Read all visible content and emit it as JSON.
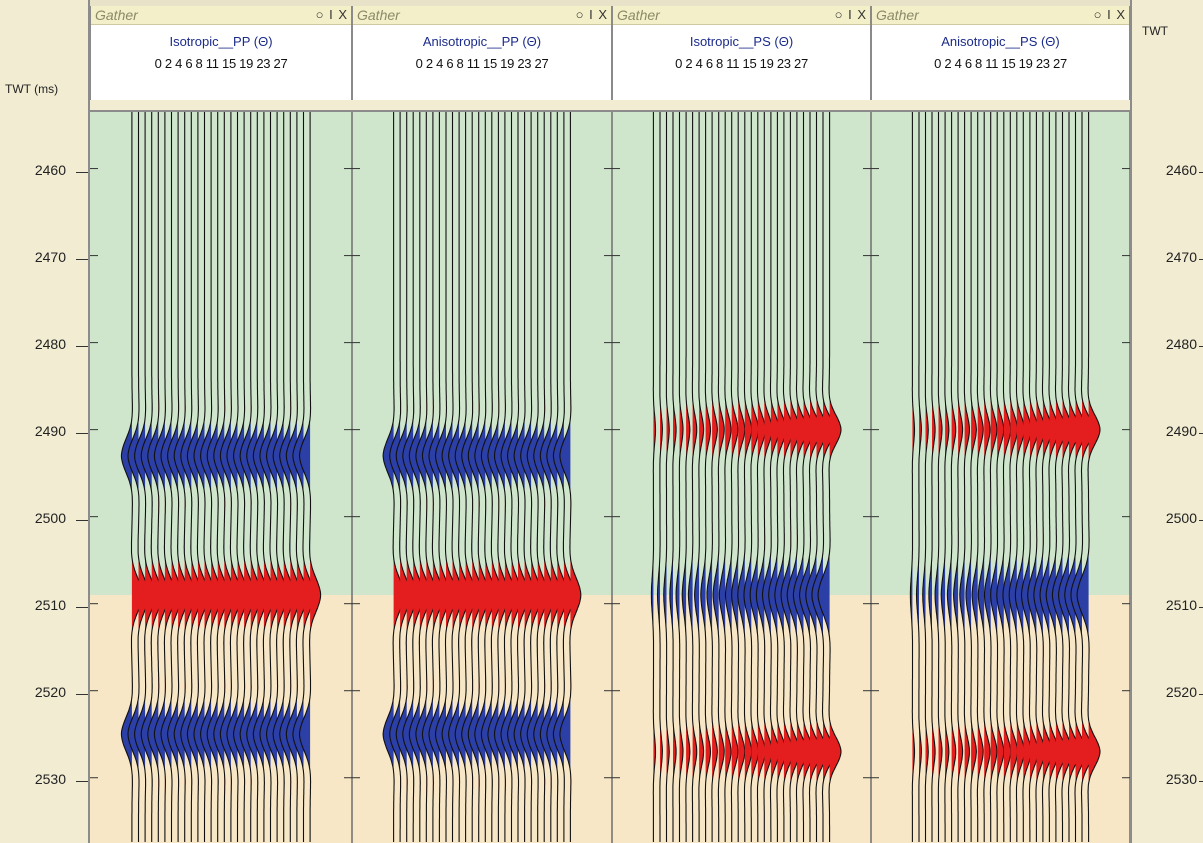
{
  "axis_left": {
    "title": "TWT (ms)",
    "ticks": [
      "2460",
      "2470",
      "2480",
      "2490",
      "2500",
      "2510",
      "2520",
      "2530"
    ]
  },
  "axis_right": {
    "title": "TWT",
    "ticks": [
      "2460",
      "2470",
      "2480",
      "2490",
      "2500",
      "2510",
      "2520",
      "2530"
    ]
  },
  "panels": [
    {
      "title": "Gather",
      "name": "Isotropic__PP (Θ)",
      "angles": "0 2 4 6 8 11 15 19 23 27",
      "buttons": "○ I X"
    },
    {
      "title": "Gather",
      "name": "Anisotropic__PP (Θ)",
      "angles": "0 2 4 6 8 11 15 19 23 27",
      "buttons": "○ I X"
    },
    {
      "title": "Gather",
      "name": "Isotropic__PS (Θ)",
      "angles": "0 2 4 6 8 11 15 19 23 27",
      "buttons": "○ I X"
    },
    {
      "title": "Gather",
      "name": "Anisotropic__PS (Θ)",
      "angles": "0 2 4 6 8 11 15 19 23 27",
      "buttons": "○ I X"
    }
  ],
  "colors": {
    "zone_upper": "#cfe6cd",
    "zone_lower": "#f7e7c6",
    "positive_fill": "#e41e1e",
    "negative_fill": "#2b3fa6",
    "wiggle": "#111111"
  },
  "gathers": {
    "twt_range_ms": [
      2453.5,
      2537.5
    ],
    "zone_boundary_ms": 2509,
    "trace_count": 28,
    "panels": [
      {
        "type": "PP",
        "events": [
          {
            "t": 2493,
            "sign": -1,
            "w": 7
          },
          {
            "t": 2509,
            "sign": 1,
            "w": 7
          },
          {
            "t": 2525,
            "sign": -1,
            "w": 7
          }
        ]
      },
      {
        "type": "PP",
        "events": [
          {
            "t": 2493,
            "sign": -1,
            "w": 7
          },
          {
            "t": 2509,
            "sign": 1,
            "w": 7
          },
          {
            "t": 2525,
            "sign": -1,
            "w": 7
          }
        ]
      },
      {
        "type": "PS",
        "events": [
          {
            "t": 2490,
            "sign": 1,
            "w": 6
          },
          {
            "t": 2509,
            "sign": -1,
            "w": 8
          },
          {
            "t": 2527,
            "sign": 1,
            "w": 6
          }
        ]
      },
      {
        "type": "PS",
        "events": [
          {
            "t": 2490,
            "sign": 1,
            "w": 6
          },
          {
            "t": 2509,
            "sign": -1,
            "w": 8
          },
          {
            "t": 2527,
            "sign": 1,
            "w": 6
          }
        ]
      }
    ]
  }
}
